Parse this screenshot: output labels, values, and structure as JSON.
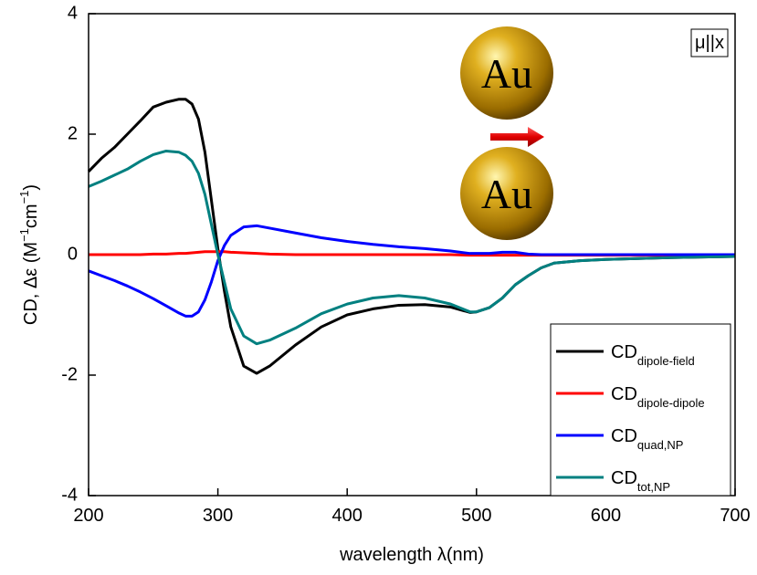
{
  "chart_data": {
    "type": "line",
    "xlabel": "wavelength λ(nm)",
    "ylabel_parts": [
      "CD, Δε  (M",
      "−1",
      "cm",
      "−1",
      ")"
    ],
    "annotations": {
      "polarization": "μ||x",
      "particle_top": "Au",
      "particle_bottom": "Au"
    },
    "x": [
      200,
      210,
      220,
      230,
      240,
      250,
      260,
      270,
      275,
      280,
      285,
      290,
      295,
      300,
      305,
      310,
      320,
      330,
      340,
      360,
      380,
      400,
      420,
      440,
      460,
      480,
      495,
      500,
      510,
      520,
      530,
      540,
      550,
      560,
      580,
      600,
      650,
      700
    ],
    "series": [
      {
        "name": "CD",
        "subscript": "dipole-field",
        "color": "#000000",
        "values": [
          1.38,
          1.6,
          1.78,
          2.0,
          2.22,
          2.45,
          2.53,
          2.58,
          2.58,
          2.5,
          2.25,
          1.7,
          0.9,
          0.1,
          -0.6,
          -1.2,
          -1.85,
          -1.97,
          -1.85,
          -1.5,
          -1.2,
          -1.0,
          -0.9,
          -0.84,
          -0.83,
          -0.87,
          -0.96,
          -0.95,
          -0.88,
          -0.72,
          -0.5,
          -0.35,
          -0.22,
          -0.14,
          -0.1,
          -0.08,
          -0.05,
          -0.03
        ]
      },
      {
        "name": "CD",
        "subscript": "dipole-dipole",
        "color": "#ff0000",
        "values": [
          0,
          0,
          0,
          0,
          0,
          0.01,
          0.01,
          0.02,
          0.02,
          0.03,
          0.04,
          0.05,
          0.05,
          0.05,
          0.05,
          0.04,
          0.03,
          0.02,
          0.01,
          0,
          0,
          0,
          0,
          0,
          0,
          0,
          -0.01,
          -0.01,
          -0.01,
          -0.01,
          -0.01,
          -0.01,
          -0.01,
          -0.01,
          -0.01,
          -0.01,
          -0.01,
          -0.01
        ]
      },
      {
        "name": "CD",
        "subscript": "quad,NP",
        "color": "#0000ff",
        "values": [
          -0.27,
          -0.35,
          -0.43,
          -0.52,
          -0.62,
          -0.73,
          -0.85,
          -0.97,
          -1.02,
          -1.02,
          -0.95,
          -0.75,
          -0.45,
          -0.1,
          0.15,
          0.32,
          0.46,
          0.48,
          0.44,
          0.36,
          0.28,
          0.22,
          0.17,
          0.13,
          0.1,
          0.06,
          0.02,
          0.02,
          0.02,
          0.04,
          0.04,
          0.01,
          0,
          0,
          0,
          0,
          0,
          0
        ]
      },
      {
        "name": "CD",
        "subscript": "tot,NP",
        "color": "#008080",
        "values": [
          1.13,
          1.22,
          1.32,
          1.42,
          1.55,
          1.66,
          1.72,
          1.7,
          1.65,
          1.55,
          1.35,
          1.0,
          0.5,
          0.0,
          -0.45,
          -0.9,
          -1.35,
          -1.48,
          -1.42,
          -1.22,
          -0.98,
          -0.82,
          -0.72,
          -0.68,
          -0.72,
          -0.82,
          -0.95,
          -0.95,
          -0.88,
          -0.72,
          -0.5,
          -0.35,
          -0.22,
          -0.14,
          -0.1,
          -0.08,
          -0.05,
          -0.03
        ]
      }
    ],
    "xlim": [
      200,
      700
    ],
    "xticks": [
      200,
      300,
      400,
      500,
      600,
      700
    ],
    "ylim": [
      -4,
      4
    ],
    "yticks": [
      -4,
      -2,
      0,
      2,
      4
    ],
    "legend": "lower right"
  }
}
